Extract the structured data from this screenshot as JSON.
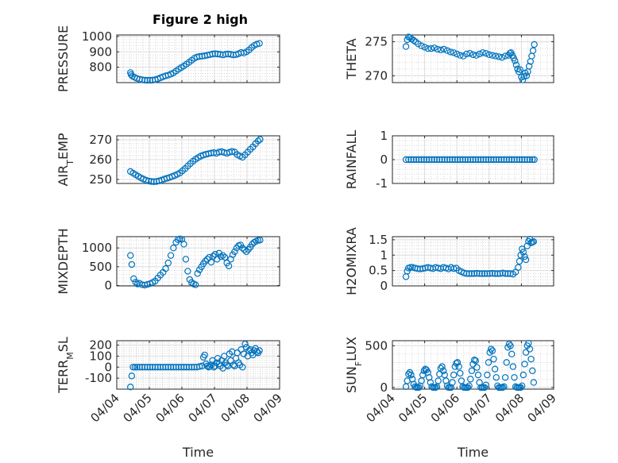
{
  "figure": {
    "title": "Figure 2 high",
    "marker_color": "#0072BD"
  },
  "chart_data": [
    {
      "type": "scatter",
      "name": "pressure",
      "ylabel": "PRESSURE",
      "ylabel_sub": null,
      "xlim": [
        0,
        5
      ],
      "ylim": [
        700,
        1010
      ],
      "yticks": [
        800,
        900,
        1000
      ],
      "yticklabels": [
        "800",
        "900",
        "1000"
      ],
      "grid": true,
      "xlabel": "",
      "title": "Figure 2 high",
      "x": [
        0.42,
        0.44,
        0.48,
        0.55,
        0.62,
        0.7,
        0.78,
        0.86,
        0.94,
        1.02,
        1.1,
        1.18,
        1.26,
        1.34,
        1.42,
        1.5,
        1.58,
        1.66,
        1.74,
        1.82,
        1.9,
        1.98,
        2.06,
        2.14,
        2.22,
        2.3,
        2.38,
        2.46,
        2.54,
        2.62,
        2.7,
        2.78,
        2.86,
        2.94,
        3.02,
        3.1,
        3.18,
        3.26,
        3.34,
        3.42,
        3.5,
        3.58,
        3.66,
        3.74,
        3.82,
        3.9,
        3.98,
        4.06,
        4.14,
        4.22,
        4.3,
        4.38
      ],
      "y": [
        765,
        752,
        742,
        734,
        727,
        722,
        718,
        716,
        715,
        715,
        716,
        719,
        724,
        731,
        738,
        744,
        748,
        755,
        763,
        775,
        787,
        798,
        808,
        820,
        832,
        845,
        858,
        866,
        870,
        872,
        874,
        878,
        882,
        886,
        888,
        886,
        884,
        880,
        885,
        886,
        884,
        880,
        882,
        888,
        896,
        892,
        900,
        912,
        928,
        942,
        950,
        955
      ]
    },
    {
      "type": "scatter",
      "name": "theta",
      "ylabel": "THETA",
      "ylabel_sub": null,
      "xlim": [
        0,
        5
      ],
      "ylim": [
        269,
        276
      ],
      "yticks": [
        270,
        275
      ],
      "yticklabels": [
        "270",
        "275"
      ],
      "grid": true,
      "xlabel": "",
      "x": [
        0.42,
        0.46,
        0.5,
        0.55,
        0.6,
        0.66,
        0.72,
        0.8,
        0.9,
        1.0,
        1.1,
        1.2,
        1.3,
        1.4,
        1.5,
        1.6,
        1.7,
        1.8,
        1.9,
        2.0,
        2.1,
        2.2,
        2.3,
        2.4,
        2.5,
        2.6,
        2.7,
        2.8,
        2.9,
        3.0,
        3.1,
        3.2,
        3.3,
        3.4,
        3.5,
        3.6,
        3.64,
        3.68,
        3.72,
        3.76,
        3.8,
        3.84,
        3.88,
        3.92,
        3.96,
        4.0,
        4.04,
        4.08,
        4.12,
        4.16,
        4.2,
        4.24,
        4.28,
        4.32,
        4.36,
        4.4
      ],
      "y": [
        274.3,
        275.3,
        275.7,
        275.6,
        275.4,
        275.2,
        275.0,
        274.7,
        274.4,
        274.2,
        274.0,
        274.0,
        274.1,
        273.9,
        273.8,
        273.9,
        273.7,
        273.5,
        273.4,
        273.2,
        273.0,
        272.9,
        273.2,
        273.3,
        273.1,
        273.0,
        273.2,
        273.4,
        273.3,
        273.1,
        273.0,
        272.9,
        272.8,
        272.7,
        272.9,
        273.0,
        273.3,
        273.4,
        273.0,
        272.6,
        272.2,
        271.6,
        271.0,
        270.6,
        270.9,
        269.8,
        269.4,
        269.9,
        270.4,
        270.0,
        270.6,
        271.4,
        272.1,
        272.9,
        273.7,
        274.6
      ]
    },
    {
      "type": "scatter",
      "name": "air_temp",
      "ylabel": "AIR",
      "ylabel_sub": "T",
      "ylabel_tail": "EMP",
      "xlim": [
        0,
        5
      ],
      "ylim": [
        248,
        272
      ],
      "yticks": [
        250,
        260,
        270
      ],
      "yticklabels": [
        "250",
        "260",
        "270"
      ],
      "grid": true,
      "xlabel": "",
      "x": [
        0.42,
        0.5,
        0.58,
        0.66,
        0.74,
        0.82,
        0.9,
        0.98,
        1.06,
        1.14,
        1.22,
        1.3,
        1.38,
        1.46,
        1.54,
        1.62,
        1.7,
        1.78,
        1.86,
        1.94,
        2.02,
        2.1,
        2.18,
        2.26,
        2.34,
        2.42,
        2.5,
        2.58,
        2.66,
        2.74,
        2.82,
        2.9,
        2.98,
        3.06,
        3.14,
        3.22,
        3.3,
        3.38,
        3.46,
        3.54,
        3.62,
        3.7,
        3.78,
        3.86,
        3.94,
        4.02,
        4.1,
        4.18,
        4.26,
        4.34,
        4.4
      ],
      "y": [
        254,
        253.2,
        252.4,
        251.6,
        250.8,
        250.2,
        249.6,
        249.2,
        249.0,
        248.9,
        249.0,
        249.3,
        249.7,
        250.2,
        250.6,
        251.0,
        251.5,
        252.0,
        252.6,
        253.3,
        254.4,
        255.5,
        256.8,
        258.0,
        259.2,
        260.2,
        261.0,
        261.8,
        262.3,
        262.7,
        263.0,
        263.3,
        263.5,
        263.2,
        263.8,
        264.0,
        263.6,
        263.2,
        263.7,
        264.1,
        263.8,
        262.5,
        261.8,
        261.2,
        262.4,
        263.8,
        265.2,
        266.4,
        268.0,
        269.4,
        270.2
      ]
    },
    {
      "type": "scatter",
      "name": "rainfall",
      "ylabel": "RAINFALL",
      "ylabel_sub": null,
      "xlim": [
        0,
        5
      ],
      "ylim": [
        -1,
        1
      ],
      "yticks": [
        -1,
        0,
        1
      ],
      "yticklabels": [
        "-1",
        "0",
        "1"
      ],
      "grid": true,
      "xlabel": "",
      "x": [
        0.42,
        0.5,
        0.58,
        0.66,
        0.74,
        0.82,
        0.9,
        0.98,
        1.06,
        1.14,
        1.22,
        1.3,
        1.38,
        1.46,
        1.54,
        1.62,
        1.7,
        1.78,
        1.86,
        1.94,
        2.02,
        2.1,
        2.18,
        2.26,
        2.34,
        2.42,
        2.5,
        2.58,
        2.66,
        2.74,
        2.82,
        2.9,
        2.98,
        3.06,
        3.14,
        3.22,
        3.3,
        3.38,
        3.46,
        3.54,
        3.62,
        3.7,
        3.78,
        3.86,
        3.94,
        4.02,
        4.1,
        4.18,
        4.26,
        4.34,
        4.4
      ],
      "y": [
        0,
        0,
        0,
        0,
        0,
        0,
        0,
        0,
        0,
        0,
        0,
        0,
        0,
        0,
        0,
        0,
        0,
        0,
        0,
        0,
        0,
        0,
        0,
        0,
        0,
        0,
        0,
        0,
        0,
        0,
        0,
        0,
        0,
        0,
        0,
        0,
        0,
        0,
        0,
        0,
        0,
        0,
        0,
        0,
        0,
        0,
        0,
        0,
        0,
        0,
        0
      ]
    },
    {
      "type": "scatter",
      "name": "mixdepth",
      "ylabel": "MIXDEPTH",
      "ylabel_sub": null,
      "xlim": [
        0,
        5
      ],
      "ylim": [
        -10,
        1300
      ],
      "yticks": [
        0,
        500,
        1000
      ],
      "yticklabels": [
        "0",
        "500",
        "1000"
      ],
      "grid": true,
      "xlabel": "",
      "x": [
        0.42,
        0.46,
        0.52,
        0.58,
        0.64,
        0.7,
        0.78,
        0.86,
        0.94,
        1.02,
        1.1,
        1.18,
        1.26,
        1.34,
        1.42,
        1.5,
        1.58,
        1.66,
        1.74,
        1.82,
        1.88,
        1.94,
        2.0,
        2.06,
        2.12,
        2.18,
        2.24,
        2.3,
        2.36,
        2.42,
        2.48,
        2.54,
        2.6,
        2.66,
        2.72,
        2.78,
        2.84,
        2.9,
        2.96,
        3.02,
        3.08,
        3.14,
        3.2,
        3.26,
        3.32,
        3.38,
        3.44,
        3.5,
        3.56,
        3.62,
        3.68,
        3.74,
        3.8,
        3.86,
        3.92,
        3.98,
        4.04,
        4.1,
        4.16,
        4.22,
        4.28,
        4.34,
        4.4
      ],
      "y": [
        800,
        560,
        180,
        90,
        40,
        60,
        20,
        10,
        30,
        50,
        80,
        120,
        200,
        280,
        350,
        450,
        600,
        800,
        1000,
        1150,
        1220,
        1240,
        1230,
        1100,
        700,
        380,
        160,
        80,
        40,
        20,
        320,
        420,
        500,
        580,
        650,
        700,
        750,
        620,
        780,
        830,
        700,
        860,
        770,
        800,
        750,
        600,
        520,
        700,
        820,
        900,
        1000,
        1060,
        1080,
        1000,
        950,
        900,
        960,
        1020,
        1100,
        1150,
        1180,
        1200,
        1210
      ]
    },
    {
      "type": "scatter",
      "name": "h2omixra",
      "ylabel": "H2OMIXRA",
      "ylabel_sub": null,
      "xlim": [
        0,
        5
      ],
      "ylim": [
        0,
        1.6
      ],
      "yticks": [
        0,
        0.5,
        1,
        1.5
      ],
      "yticklabels": [
        "0",
        "0.5",
        "1",
        "1.5"
      ],
      "grid": true,
      "xlabel": "",
      "x": [
        0.42,
        0.46,
        0.5,
        0.56,
        0.62,
        0.7,
        0.78,
        0.86,
        0.94,
        1.02,
        1.1,
        1.18,
        1.26,
        1.34,
        1.42,
        1.5,
        1.58,
        1.66,
        1.74,
        1.82,
        1.9,
        1.98,
        2.06,
        2.14,
        2.22,
        2.3,
        2.38,
        2.46,
        2.54,
        2.62,
        2.7,
        2.78,
        2.86,
        2.94,
        3.02,
        3.1,
        3.18,
        3.26,
        3.34,
        3.42,
        3.5,
        3.58,
        3.66,
        3.74,
        3.82,
        3.9,
        3.94,
        3.98,
        4.02,
        4.06,
        4.1,
        4.14,
        4.18,
        4.22,
        4.26,
        4.3,
        4.34,
        4.38
      ],
      "y": [
        0.3,
        0.48,
        0.58,
        0.6,
        0.6,
        0.58,
        0.56,
        0.55,
        0.56,
        0.58,
        0.6,
        0.58,
        0.56,
        0.6,
        0.58,
        0.56,
        0.6,
        0.58,
        0.55,
        0.6,
        0.56,
        0.58,
        0.5,
        0.46,
        0.42,
        0.4,
        0.4,
        0.4,
        0.4,
        0.41,
        0.4,
        0.4,
        0.4,
        0.4,
        0.4,
        0.41,
        0.4,
        0.4,
        0.4,
        0.42,
        0.4,
        0.4,
        0.4,
        0.38,
        0.45,
        0.6,
        0.8,
        1.0,
        1.2,
        1.1,
        0.95,
        0.85,
        1.3,
        1.45,
        1.52,
        1.4,
        1.42,
        1.44
      ]
    },
    {
      "type": "scatter",
      "name": "terr_msl",
      "ylabel": "TERR",
      "ylabel_sub": "M",
      "ylabel_tail": "SL",
      "xlim": [
        0,
        5
      ],
      "ylim": [
        -200,
        240
      ],
      "yticks": [
        -100,
        0,
        100,
        200
      ],
      "yticklabels": [
        "-100",
        "0",
        "100",
        "200"
      ],
      "grid": true,
      "xlabel": "Time",
      "xticks": [
        0,
        1,
        2,
        3,
        4,
        5
      ],
      "xticklabels": [
        "04/04",
        "04/05",
        "04/06",
        "04/07",
        "04/08",
        "04/09"
      ],
      "x": [
        0.42,
        0.46,
        0.5,
        0.56,
        0.62,
        0.7,
        0.78,
        0.86,
        0.94,
        1.02,
        1.1,
        1.18,
        1.26,
        1.34,
        1.42,
        1.5,
        1.58,
        1.66,
        1.74,
        1.82,
        1.9,
        1.98,
        2.06,
        2.14,
        2.22,
        2.3,
        2.38,
        2.46,
        2.54,
        2.62,
        2.66,
        2.7,
        2.74,
        2.78,
        2.82,
        2.86,
        2.9,
        2.94,
        2.98,
        3.02,
        3.06,
        3.1,
        3.14,
        3.18,
        3.22,
        3.26,
        3.3,
        3.34,
        3.38,
        3.42,
        3.46,
        3.5,
        3.54,
        3.58,
        3.62,
        3.66,
        3.7,
        3.74,
        3.78,
        3.82,
        3.86,
        3.9,
        3.94,
        3.98,
        4.02,
        4.06,
        4.1,
        4.14,
        4.18,
        4.22,
        4.26,
        4.3,
        4.34,
        4.38
      ],
      "y": [
        -180,
        -80,
        0,
        0,
        0,
        0,
        0,
        0,
        0,
        0,
        0,
        0,
        0,
        0,
        0,
        0,
        0,
        0,
        0,
        0,
        0,
        0,
        0,
        0,
        0,
        0,
        0,
        0,
        5,
        10,
        90,
        110,
        30,
        10,
        0,
        5,
        20,
        60,
        0,
        10,
        40,
        80,
        30,
        10,
        60,
        -10,
        100,
        40,
        20,
        10,
        120,
        60,
        140,
        20,
        10,
        80,
        130,
        40,
        20,
        160,
        0,
        120,
        210,
        180,
        100,
        150,
        160,
        130,
        110,
        150,
        170,
        140,
        130,
        150
      ]
    },
    {
      "type": "scatter",
      "name": "sun_flux",
      "ylabel": "SUN",
      "ylabel_sub": "F",
      "ylabel_tail": "LUX",
      "xlim": [
        0,
        5
      ],
      "ylim": [
        -20,
        560
      ],
      "yticks": [
        0,
        500
      ],
      "yticklabels": [
        "0",
        "500"
      ],
      "grid": true,
      "xlabel": "Time",
      "xticks": [
        0,
        1,
        2,
        3,
        4,
        5
      ],
      "xticklabels": [
        "04/04",
        "04/05",
        "04/06",
        "04/07",
        "04/08",
        "04/09"
      ],
      "x": [
        0.42,
        0.46,
        0.5,
        0.54,
        0.58,
        0.62,
        0.66,
        0.7,
        0.74,
        0.78,
        0.82,
        0.86,
        0.9,
        0.94,
        0.98,
        1.02,
        1.06,
        1.1,
        1.14,
        1.18,
        1.22,
        1.26,
        1.3,
        1.34,
        1.38,
        1.42,
        1.46,
        1.5,
        1.54,
        1.58,
        1.62,
        1.66,
        1.7,
        1.74,
        1.78,
        1.82,
        1.86,
        1.9,
        1.94,
        1.98,
        2.02,
        2.06,
        2.1,
        2.14,
        2.18,
        2.22,
        2.26,
        2.3,
        2.34,
        2.38,
        2.42,
        2.46,
        2.5,
        2.54,
        2.58,
        2.62,
        2.66,
        2.7,
        2.74,
        2.78,
        2.82,
        2.86,
        2.9,
        2.94,
        2.98,
        3.02,
        3.06,
        3.1,
        3.14,
        3.18,
        3.22,
        3.26,
        3.3,
        3.34,
        3.38,
        3.42,
        3.46,
        3.5,
        3.54,
        3.58,
        3.62,
        3.66,
        3.7,
        3.74,
        3.78,
        3.82,
        3.86,
        3.9,
        3.94,
        3.98,
        4.02,
        4.06,
        4.1,
        4.14,
        4.18,
        4.22,
        4.26,
        4.3,
        4.34,
        4.38
      ],
      "y": [
        10,
        80,
        160,
        180,
        150,
        100,
        40,
        10,
        0,
        0,
        0,
        20,
        80,
        150,
        200,
        220,
        210,
        180,
        120,
        60,
        10,
        0,
        0,
        0,
        10,
        80,
        160,
        230,
        250,
        200,
        150,
        80,
        20,
        0,
        0,
        0,
        60,
        150,
        250,
        290,
        300,
        250,
        170,
        80,
        10,
        0,
        0,
        0,
        0,
        20,
        100,
        200,
        280,
        330,
        320,
        240,
        150,
        60,
        0,
        0,
        0,
        0,
        30,
        150,
        300,
        420,
        460,
        440,
        340,
        220,
        120,
        20,
        0,
        0,
        0,
        0,
        10,
        120,
        300,
        480,
        520,
        500,
        400,
        250,
        120,
        10,
        0,
        0,
        0,
        0,
        20,
        150,
        280,
        420,
        500,
        530,
        460,
        340,
        200,
        60
      ]
    }
  ]
}
